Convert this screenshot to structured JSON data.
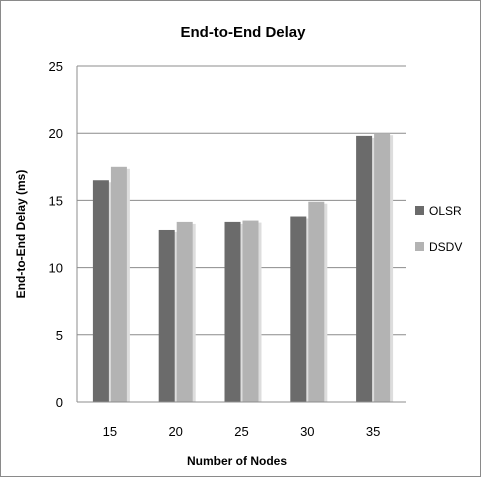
{
  "chart_data": {
    "type": "bar",
    "title": "End-to-End Delay",
    "xlabel": "Number of Nodes",
    "ylabel": "End-to-End Delay (ms)",
    "categories": [
      "15",
      "20",
      "25",
      "30",
      "35"
    ],
    "series": [
      {
        "name": "OLSR",
        "values": [
          16.5,
          12.8,
          13.4,
          13.8,
          19.8
        ],
        "color": "#6b6b6b"
      },
      {
        "name": "DSDV",
        "values": [
          17.5,
          13.4,
          13.5,
          14.9,
          20.0
        ],
        "color": "#b3b3b3"
      }
    ],
    "ylim": [
      0,
      25
    ],
    "yticks": [
      "0",
      "5",
      "10",
      "15",
      "20",
      "25"
    ],
    "grid": true,
    "legend": "right"
  }
}
